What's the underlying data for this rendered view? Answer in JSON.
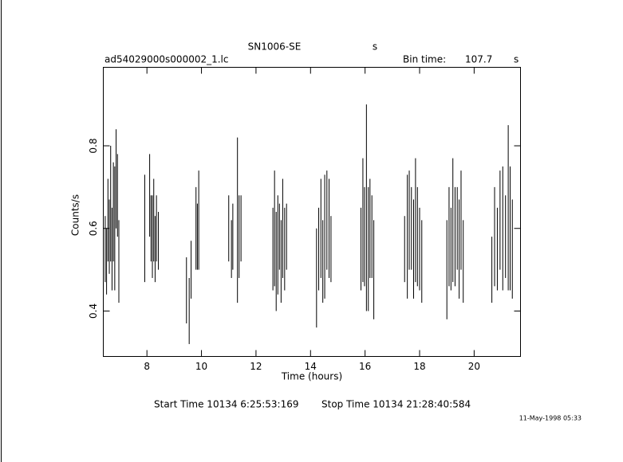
{
  "chart_data": {
    "type": "errorbar",
    "title": "SN1006-SE",
    "title_unit": "s",
    "file_name": "ad54029000s000002_1.lc",
    "bin_time_label": "Bin time:",
    "bin_time": "107.7",
    "bin_time_unit": "s",
    "xlabel": "Time (hours)",
    "ylabel": "Counts/s",
    "start_time": "Start Time 10134  6:25:53:169",
    "stop_time": "Stop Time 10134 21:28:40:584",
    "date_stamp": "11-May-1998 05:33",
    "color": "#000000",
    "xlim": [
      6.4,
      21.7
    ],
    "xticks": [
      8,
      10,
      12,
      14,
      16,
      18,
      20
    ],
    "ylim": [
      0.29,
      0.99
    ],
    "yticks": [
      0.4,
      0.6,
      0.8
    ],
    "x": [
      6.47,
      6.52,
      6.57,
      6.62,
      6.67,
      6.72,
      6.77,
      6.82,
      6.87,
      6.92,
      6.97,
      7.92,
      8.1,
      8.15,
      8.2,
      8.25,
      8.3,
      8.35,
      8.42,
      9.45,
      9.55,
      9.62,
      9.8,
      9.85,
      9.9,
      11.0,
      11.1,
      11.15,
      11.32,
      11.38,
      11.45,
      12.62,
      12.68,
      12.74,
      12.8,
      12.86,
      12.92,
      12.98,
      13.05,
      13.12,
      14.22,
      14.3,
      14.38,
      14.45,
      14.52,
      14.6,
      14.68,
      14.75,
      15.85,
      15.92,
      15.98,
      16.05,
      16.12,
      16.18,
      16.25,
      16.32,
      17.45,
      17.55,
      17.62,
      17.7,
      17.78,
      17.85,
      17.92,
      18.0,
      18.08,
      19.0,
      19.08,
      19.15,
      19.22,
      19.3,
      19.38,
      19.45,
      19.52,
      19.6,
      20.65,
      20.75,
      20.85,
      20.95,
      21.05,
      21.15,
      21.25,
      21.32,
      21.4
    ],
    "values": [
      0.55,
      0.52,
      0.62,
      0.58,
      0.66,
      0.55,
      0.64,
      0.6,
      0.72,
      0.68,
      0.52,
      0.6,
      0.68,
      0.6,
      0.58,
      0.62,
      0.55,
      0.6,
      0.57,
      0.45,
      0.4,
      0.5,
      0.6,
      0.58,
      0.62,
      0.6,
      0.55,
      0.58,
      0.62,
      0.58,
      0.6,
      0.55,
      0.6,
      0.52,
      0.56,
      0.58,
      0.52,
      0.6,
      0.55,
      0.58,
      0.48,
      0.55,
      0.6,
      0.52,
      0.58,
      0.62,
      0.6,
      0.55,
      0.55,
      0.62,
      0.58,
      0.65,
      0.55,
      0.6,
      0.58,
      0.5,
      0.55,
      0.58,
      0.62,
      0.6,
      0.55,
      0.62,
      0.58,
      0.55,
      0.52,
      0.5,
      0.58,
      0.55,
      0.62,
      0.58,
      0.6,
      0.55,
      0.62,
      0.52,
      0.5,
      0.58,
      0.55,
      0.62,
      0.6,
      0.58,
      0.65,
      0.6,
      0.55
    ],
    "errors": [
      0.08,
      0.08,
      0.1,
      0.09,
      0.14,
      0.1,
      0.12,
      0.15,
      0.12,
      0.1,
      0.1,
      0.13,
      0.1,
      0.08,
      0.1,
      0.1,
      0.08,
      0.08,
      0.07,
      0.08,
      0.08,
      0.07,
      0.1,
      0.08,
      0.12,
      0.08,
      0.07,
      0.08,
      0.2,
      0.1,
      0.08,
      0.1,
      0.14,
      0.12,
      0.12,
      0.08,
      0.1,
      0.12,
      0.1,
      0.08,
      0.12,
      0.1,
      0.12,
      0.1,
      0.15,
      0.12,
      0.12,
      0.08,
      0.1,
      0.15,
      0.12,
      0.25,
      0.15,
      0.12,
      0.1,
      0.12,
      0.08,
      0.15,
      0.12,
      0.1,
      0.12,
      0.15,
      0.12,
      0.1,
      0.1,
      0.12,
      0.12,
      0.1,
      0.15,
      0.12,
      0.1,
      0.12,
      0.12,
      0.1,
      0.08,
      0.12,
      0.1,
      0.12,
      0.15,
      0.1,
      0.2,
      0.15,
      0.12
    ]
  }
}
